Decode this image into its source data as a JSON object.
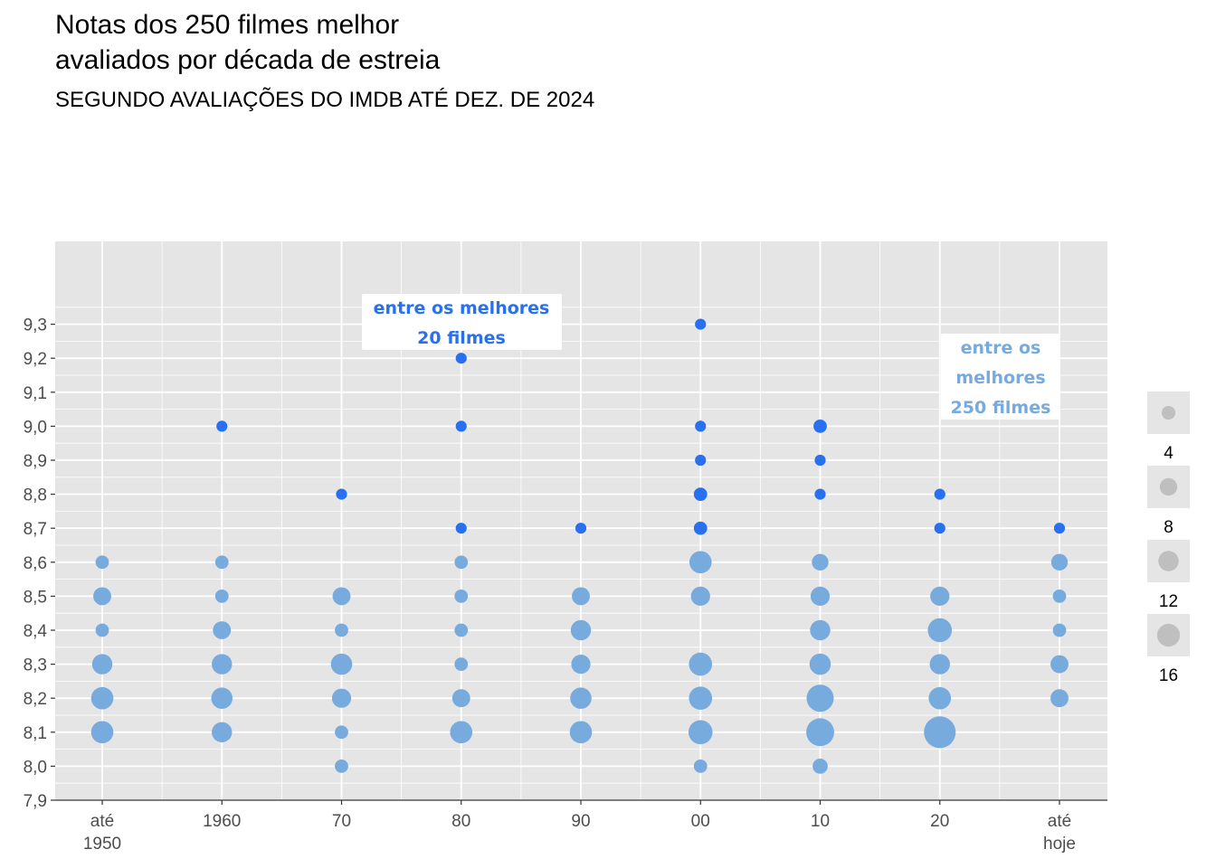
{
  "title_lines": [
    "Notas dos 250 filmes melhor",
    "avaliados por década de estreia"
  ],
  "subtitle": "SEGUNDO AVALIAÇÕES DO IMDB ATÉ DEZ. DE 2024",
  "colors": {
    "top20": "#2970f0",
    "top250": "#77aadd",
    "panel": "#e5e5e5",
    "grid": "#ffffff",
    "legend_point": "#bfbfbf"
  },
  "annotations": [
    {
      "lines": [
        "entre os melhores",
        "20 filmes"
      ],
      "color": "#2970f0"
    },
    {
      "lines": [
        "entre os",
        "melhores",
        "250 filmes"
      ],
      "color": "#77aadd"
    }
  ],
  "chart_data": {
    "type": "scatter",
    "categories": [
      [
        "até",
        "1950"
      ],
      [
        "1960"
      ],
      [
        "70"
      ],
      [
        "80"
      ],
      [
        "90"
      ],
      [
        "00"
      ],
      [
        "10"
      ],
      [
        "20"
      ],
      [
        "até",
        "hoje"
      ]
    ],
    "yticks": [
      "7,9",
      "8,0",
      "8,1",
      "8,2",
      "8,3",
      "8,4",
      "8,5",
      "8,6",
      "8,7",
      "8,8",
      "8,9",
      "9,0",
      "9,1",
      "9,2",
      "9,3"
    ],
    "ylim": [
      7.9,
      9.4
    ],
    "size_legend": [
      "4",
      "8",
      "12",
      "16"
    ],
    "points": [
      {
        "c": 0,
        "y": 8.6,
        "n": 2,
        "g": "top250"
      },
      {
        "c": 0,
        "y": 8.5,
        "n": 5,
        "g": "top250"
      },
      {
        "c": 0,
        "y": 8.4,
        "n": 2,
        "g": "top250"
      },
      {
        "c": 0,
        "y": 8.3,
        "n": 7,
        "g": "top250"
      },
      {
        "c": 0,
        "y": 8.2,
        "n": 9,
        "g": "top250"
      },
      {
        "c": 0,
        "y": 8.1,
        "n": 9,
        "g": "top250"
      },
      {
        "c": 1,
        "y": 9.0,
        "n": 1,
        "g": "top20"
      },
      {
        "c": 1,
        "y": 8.6,
        "n": 2,
        "g": "top250"
      },
      {
        "c": 1,
        "y": 8.5,
        "n": 2,
        "g": "top250"
      },
      {
        "c": 1,
        "y": 8.4,
        "n": 5,
        "g": "top250"
      },
      {
        "c": 1,
        "y": 8.3,
        "n": 7,
        "g": "top250"
      },
      {
        "c": 1,
        "y": 8.2,
        "n": 8,
        "g": "top250"
      },
      {
        "c": 1,
        "y": 8.1,
        "n": 7,
        "g": "top250"
      },
      {
        "c": 2,
        "y": 8.8,
        "n": 1,
        "g": "top20"
      },
      {
        "c": 2,
        "y": 8.5,
        "n": 5,
        "g": "top250"
      },
      {
        "c": 2,
        "y": 8.4,
        "n": 2,
        "g": "top250"
      },
      {
        "c": 2,
        "y": 8.3,
        "n": 8,
        "g": "top250"
      },
      {
        "c": 2,
        "y": 8.2,
        "n": 6,
        "g": "top250"
      },
      {
        "c": 2,
        "y": 8.1,
        "n": 2,
        "g": "top250"
      },
      {
        "c": 2,
        "y": 8.0,
        "n": 2,
        "g": "top250"
      },
      {
        "c": 3,
        "y": 9.2,
        "n": 1,
        "g": "top20"
      },
      {
        "c": 3,
        "y": 9.0,
        "n": 1,
        "g": "top20"
      },
      {
        "c": 3,
        "y": 8.7,
        "n": 1,
        "g": "top20"
      },
      {
        "c": 3,
        "y": 8.6,
        "n": 2,
        "g": "top250"
      },
      {
        "c": 3,
        "y": 8.5,
        "n": 2,
        "g": "top250"
      },
      {
        "c": 3,
        "y": 8.4,
        "n": 2,
        "g": "top250"
      },
      {
        "c": 3,
        "y": 8.3,
        "n": 2,
        "g": "top250"
      },
      {
        "c": 3,
        "y": 8.2,
        "n": 5,
        "g": "top250"
      },
      {
        "c": 3,
        "y": 8.1,
        "n": 9,
        "g": "top250"
      },
      {
        "c": 4,
        "y": 8.7,
        "n": 1,
        "g": "top20"
      },
      {
        "c": 4,
        "y": 8.5,
        "n": 5,
        "g": "top250"
      },
      {
        "c": 4,
        "y": 8.4,
        "n": 7,
        "g": "top250"
      },
      {
        "c": 4,
        "y": 8.3,
        "n": 6,
        "g": "top250"
      },
      {
        "c": 4,
        "y": 8.2,
        "n": 8,
        "g": "top250"
      },
      {
        "c": 4,
        "y": 8.1,
        "n": 9,
        "g": "top250"
      },
      {
        "c": 5,
        "y": 9.3,
        "n": 1,
        "g": "top20"
      },
      {
        "c": 5,
        "y": 9.0,
        "n": 1,
        "g": "top20"
      },
      {
        "c": 5,
        "y": 8.9,
        "n": 1,
        "g": "top20"
      },
      {
        "c": 5,
        "y": 8.8,
        "n": 2,
        "g": "top20"
      },
      {
        "c": 5,
        "y": 8.7,
        "n": 2,
        "g": "top20"
      },
      {
        "c": 5,
        "y": 8.6,
        "n": 9,
        "g": "top250"
      },
      {
        "c": 5,
        "y": 8.5,
        "n": 6,
        "g": "top250"
      },
      {
        "c": 5,
        "y": 8.3,
        "n": 10,
        "g": "top250"
      },
      {
        "c": 5,
        "y": 8.2,
        "n": 10,
        "g": "top250"
      },
      {
        "c": 5,
        "y": 8.1,
        "n": 11,
        "g": "top250"
      },
      {
        "c": 5,
        "y": 8.0,
        "n": 2,
        "g": "top250"
      },
      {
        "c": 6,
        "y": 9.0,
        "n": 2,
        "g": "top20"
      },
      {
        "c": 6,
        "y": 8.9,
        "n": 1,
        "g": "top20"
      },
      {
        "c": 6,
        "y": 8.8,
        "n": 1,
        "g": "top20"
      },
      {
        "c": 6,
        "y": 8.6,
        "n": 4,
        "g": "top250"
      },
      {
        "c": 6,
        "y": 8.5,
        "n": 6,
        "g": "top250"
      },
      {
        "c": 6,
        "y": 8.4,
        "n": 7,
        "g": "top250"
      },
      {
        "c": 6,
        "y": 8.3,
        "n": 8,
        "g": "top250"
      },
      {
        "c": 6,
        "y": 8.2,
        "n": 15,
        "g": "top250"
      },
      {
        "c": 6,
        "y": 8.1,
        "n": 16,
        "g": "top250"
      },
      {
        "c": 6,
        "y": 8.0,
        "n": 3,
        "g": "top250"
      },
      {
        "c": 7,
        "y": 8.8,
        "n": 1,
        "g": "top20"
      },
      {
        "c": 7,
        "y": 8.7,
        "n": 1,
        "g": "top20"
      },
      {
        "c": 7,
        "y": 8.5,
        "n": 6,
        "g": "top250"
      },
      {
        "c": 7,
        "y": 8.4,
        "n": 11,
        "g": "top250"
      },
      {
        "c": 7,
        "y": 8.3,
        "n": 7,
        "g": "top250"
      },
      {
        "c": 7,
        "y": 8.2,
        "n": 9,
        "g": "top250"
      },
      {
        "c": 7,
        "y": 8.1,
        "n": 22,
        "g": "top250"
      },
      {
        "c": 8,
        "y": 8.7,
        "n": 1,
        "g": "top20"
      },
      {
        "c": 8,
        "y": 8.6,
        "n": 4,
        "g": "top250"
      },
      {
        "c": 8,
        "y": 8.5,
        "n": 2,
        "g": "top250"
      },
      {
        "c": 8,
        "y": 8.4,
        "n": 2,
        "g": "top250"
      },
      {
        "c": 8,
        "y": 8.3,
        "n": 5,
        "g": "top250"
      },
      {
        "c": 8,
        "y": 8.2,
        "n": 5,
        "g": "top250"
      }
    ]
  }
}
